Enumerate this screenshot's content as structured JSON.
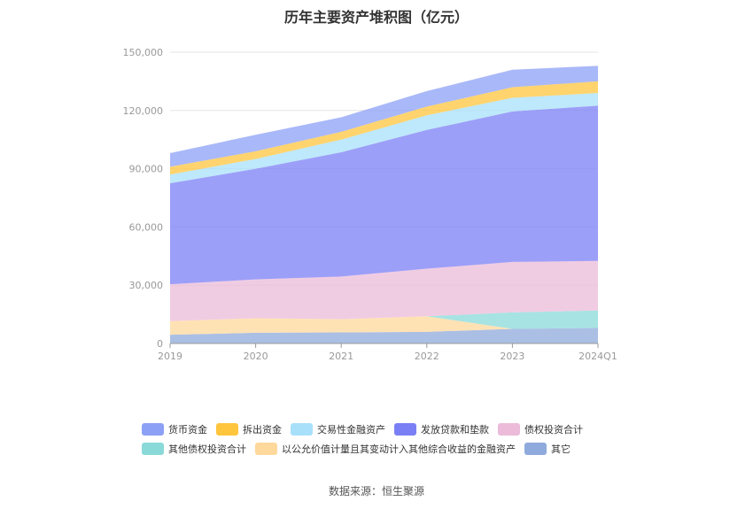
{
  "chart_data": {
    "type": "area",
    "stacked": true,
    "title": "历年主要资产堆积图（亿元）",
    "categories": [
      "2019",
      "2020",
      "2021",
      "2022",
      "2023",
      "2024Q1"
    ],
    "y_ticks": [
      "0",
      "30,000",
      "60,000",
      "90,000",
      "120,000",
      "150,000"
    ],
    "ylim": [
      0,
      150000
    ],
    "grid": true,
    "legend_position": "bottom",
    "series": [
      {
        "name": "其它",
        "color": "#8faadc",
        "values": [
          4500,
          5500,
          5700,
          6000,
          7500,
          8000
        ]
      },
      {
        "name": "以公允价值计量且其变动计入其他综合收益的金融资产",
        "color": "#ffd89b",
        "values": [
          7000,
          7500,
          6800,
          8000,
          0,
          0
        ]
      },
      {
        "name": "其他债权投资合计",
        "color": "#8ad9d9",
        "values": [
          0,
          0,
          0,
          0,
          8500,
          9000
        ]
      },
      {
        "name": "债权投资合计",
        "color": "#ebbbd9",
        "values": [
          19000,
          20000,
          22000,
          24500,
          26000,
          25500
        ]
      },
      {
        "name": "发放贷款和垫款",
        "color": "#7b7ff5",
        "values": [
          52000,
          57000,
          64000,
          71500,
          77500,
          80000
        ]
      },
      {
        "name": "交易性金融资产",
        "color": "#a8e0fa",
        "values": [
          4500,
          5000,
          6500,
          7500,
          7000,
          6500
        ]
      },
      {
        "name": "拆出资金",
        "color": "#ffc53d",
        "values": [
          4000,
          4000,
          4000,
          4500,
          5500,
          6000
        ]
      },
      {
        "name": "货币资金",
        "color": "#8ca0f5",
        "values": [
          7000,
          8500,
          7500,
          8000,
          9000,
          8000
        ]
      }
    ]
  },
  "legend_rows": [
    [
      "货币资金",
      "拆出资金",
      "交易性金融资产",
      "发放贷款和垫款",
      "债权投资合计"
    ],
    [
      "其他债权投资合计",
      "以公允价值计量且其变动计入其他综合收益的金融资产",
      "其它"
    ]
  ],
  "source": "数据来源：恒生聚源"
}
